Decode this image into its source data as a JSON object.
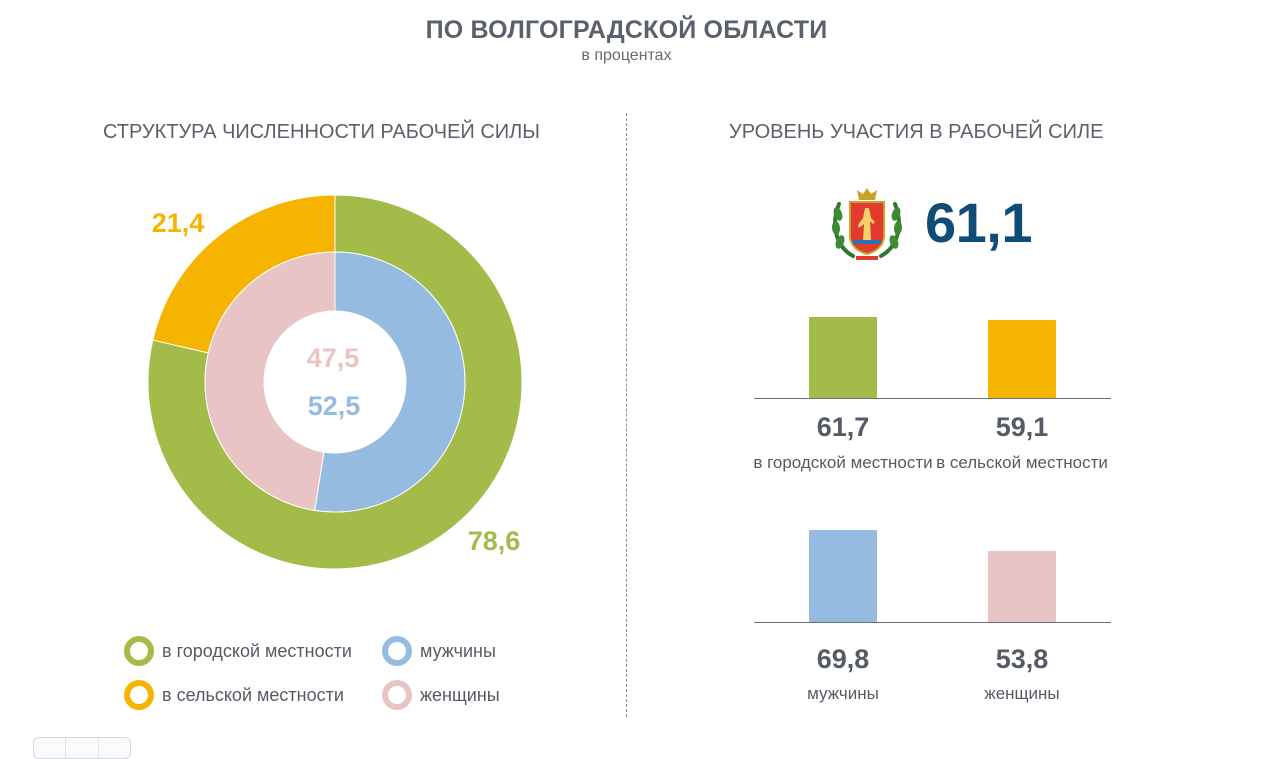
{
  "header": {
    "title": "ПО ВОЛГОГРАДСКОЙ ОБЛАСТИ",
    "subtitle": "в процентах"
  },
  "colors": {
    "urban": "#a3bb48",
    "rural": "#f5b400",
    "men": "#96bbe0",
    "women": "#e8c4c4",
    "accent": "#0f4d77",
    "text": "#555b64"
  },
  "chart_data": [
    {
      "type": "pie",
      "variant": "nested-donut",
      "title": "СТРУКТУРА ЧИСЛЕННОСТИ РАБОЧЕЙ СИЛЫ",
      "unit": "%",
      "rings": [
        {
          "name": "outer",
          "slices": [
            {
              "label": "в городской местности",
              "value": 78.6,
              "display": "78,6",
              "color": "#a3bb48"
            },
            {
              "label": "в сельской местности",
              "value": 21.4,
              "display": "21,4",
              "color": "#f5b400"
            }
          ]
        },
        {
          "name": "inner",
          "slices": [
            {
              "label": "мужчины",
              "value": 52.5,
              "display": "52,5",
              "color": "#96bbe0"
            },
            {
              "label": "женщины",
              "value": 47.5,
              "display": "47,5",
              "color": "#e8c4c4"
            }
          ]
        }
      ],
      "legend": [
        {
          "label": "в городской местности",
          "color": "#a3bb48"
        },
        {
          "label": "мужчины",
          "color": "#96bbe0"
        },
        {
          "label": "в сельской местности",
          "color": "#f5b400"
        },
        {
          "label": "женщины",
          "color": "#e8c4c4"
        }
      ]
    },
    {
      "type": "bar",
      "title": "УРОВЕНЬ УЧАСТИЯ В РАБОЧЕЙ СИЛЕ",
      "total": {
        "value": 61.1,
        "display": "61,1"
      },
      "unit": "%",
      "groups": [
        {
          "categories": [
            "в городской местности",
            "в сельской местности"
          ],
          "series": [
            {
              "label": "в городской местности",
              "value": 61.7,
              "display": "61,7",
              "color": "#a3bb48"
            },
            {
              "label": "в сельской местности",
              "value": 59.1,
              "display": "59,1",
              "color": "#f5b400"
            }
          ]
        },
        {
          "categories": [
            "мужчины",
            "женщины"
          ],
          "series": [
            {
              "label": "мужчины",
              "value": 69.8,
              "display": "69,8",
              "color": "#96bbe0"
            },
            {
              "label": "женщины",
              "value": 53.8,
              "display": "53,8",
              "color": "#e8c4c4"
            }
          ]
        }
      ]
    }
  ]
}
